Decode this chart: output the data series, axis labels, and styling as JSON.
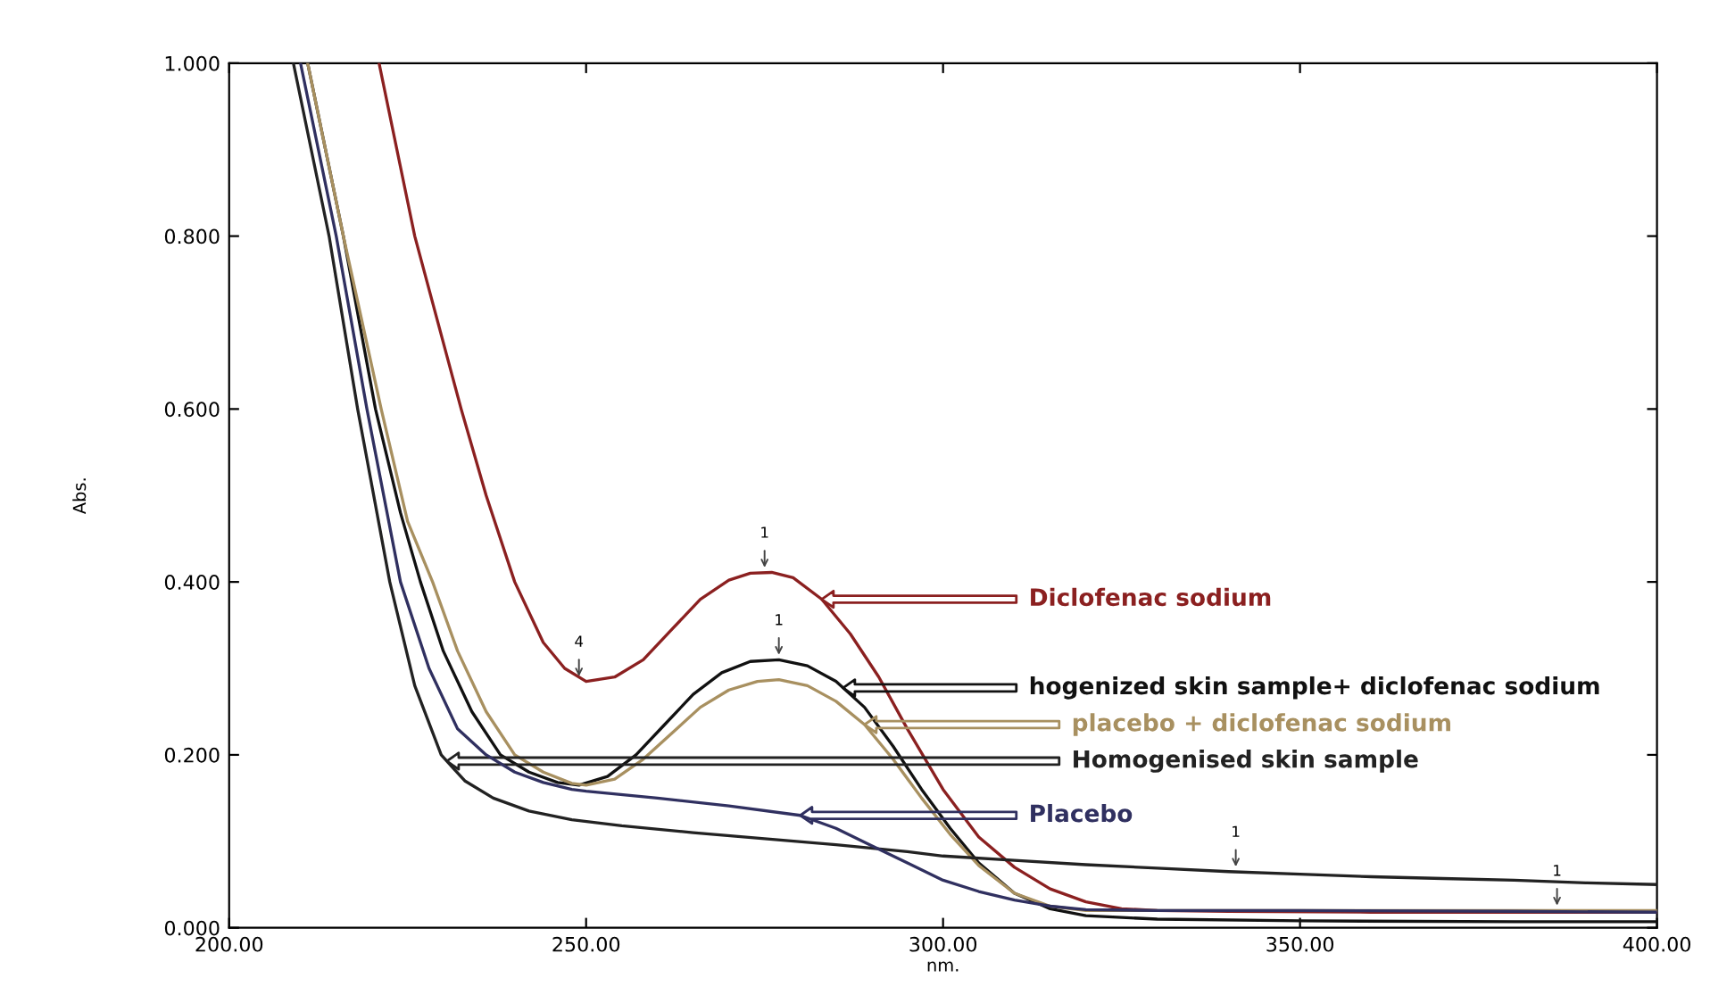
{
  "chart_data": {
    "type": "line",
    "xlabel": "nm.",
    "ylabel": "Abs.",
    "xlim": [
      200,
      400
    ],
    "xticks": [
      {
        "value": 200,
        "label": "200.00"
      },
      {
        "value": 250,
        "label": "250.00"
      },
      {
        "value": 300,
        "label": "300.00"
      },
      {
        "value": 350,
        "label": "350.00"
      },
      {
        "value": 400,
        "label": "400.00"
      }
    ],
    "ylim": [
      0,
      1
    ],
    "yticks": [
      {
        "value": 0,
        "label": "0.000"
      },
      {
        "value": 0.2,
        "label": "0.200"
      },
      {
        "value": 0.4,
        "label": "0.400"
      },
      {
        "value": 0.6,
        "label": "0.600"
      },
      {
        "value": 0.8,
        "label": "0.800"
      },
      {
        "value": 1.0,
        "label": "1.000"
      }
    ],
    "grid": false,
    "legend": false,
    "marker": "none",
    "line_style": "solid",
    "series": [
      {
        "name": "Diclofenac sodium",
        "color": "#8b2020",
        "x": [
          221,
          226,
          232.5,
          236,
          240,
          244,
          247,
          250,
          254,
          258,
          262,
          266,
          270,
          273,
          276,
          279,
          283,
          287,
          291,
          295,
          300,
          305,
          310,
          315,
          320,
          325,
          330,
          340,
          360,
          380,
          400
        ],
        "values": [
          1.0,
          0.8,
          0.6,
          0.5,
          0.4,
          0.33,
          0.3,
          0.285,
          0.29,
          0.31,
          0.345,
          0.38,
          0.402,
          0.41,
          0.411,
          0.405,
          0.38,
          0.34,
          0.29,
          0.23,
          0.16,
          0.105,
          0.07,
          0.045,
          0.03,
          0.022,
          0.02,
          0.019,
          0.018,
          0.018,
          0.018
        ]
      },
      {
        "name": "hogenized skin sample+ diclofenac sodium",
        "color": "#111111",
        "x": [
          211,
          216,
          220.5,
          224,
          226.8,
          230,
          234,
          238,
          242,
          246,
          249,
          253,
          257,
          261,
          265,
          269,
          273,
          277,
          281,
          285,
          289,
          293,
          297,
          301,
          305,
          310,
          315,
          320,
          330,
          350,
          380,
          400
        ],
        "values": [
          1.0,
          0.8,
          0.6,
          0.48,
          0.4,
          0.32,
          0.25,
          0.2,
          0.18,
          0.168,
          0.165,
          0.175,
          0.2,
          0.235,
          0.27,
          0.295,
          0.308,
          0.31,
          0.303,
          0.285,
          0.255,
          0.21,
          0.16,
          0.115,
          0.075,
          0.04,
          0.022,
          0.014,
          0.01,
          0.008,
          0.007,
          0.007
        ]
      },
      {
        "name": "placebo + diclofenac sodium",
        "color": "#a89060",
        "x": [
          211,
          216,
          221.3,
          225,
          228.5,
          232,
          236,
          240,
          244,
          248,
          250,
          254,
          258,
          262,
          266,
          270,
          274,
          277,
          281,
          285,
          289,
          293,
          297,
          301,
          305,
          310,
          315,
          320,
          330,
          350,
          385,
          400
        ],
        "values": [
          1.0,
          0.8,
          0.6,
          0.47,
          0.4,
          0.32,
          0.25,
          0.2,
          0.18,
          0.167,
          0.165,
          0.172,
          0.195,
          0.225,
          0.255,
          0.275,
          0.285,
          0.287,
          0.28,
          0.262,
          0.235,
          0.195,
          0.15,
          0.108,
          0.072,
          0.04,
          0.025,
          0.02,
          0.02,
          0.02,
          0.02,
          0.02
        ]
      },
      {
        "name": "Homogenised skin sample",
        "color": "#222222",
        "x": [
          209,
          214,
          218,
          222.5,
          226,
          229.7,
          233,
          237,
          242,
          248,
          255,
          265,
          275,
          285,
          295,
          300,
          310,
          320,
          330,
          340,
          350,
          360,
          370,
          380,
          390,
          400
        ],
        "values": [
          1.0,
          0.8,
          0.6,
          0.4,
          0.28,
          0.2,
          0.17,
          0.15,
          0.135,
          0.125,
          0.118,
          0.11,
          0.103,
          0.096,
          0.088,
          0.083,
          0.078,
          0.073,
          0.069,
          0.065,
          0.062,
          0.059,
          0.057,
          0.055,
          0.052,
          0.05
        ]
      },
      {
        "name": "Placebo",
        "color": "#303060",
        "x": [
          210,
          215,
          219.3,
          224,
          228,
          232,
          236,
          240,
          244,
          248,
          250,
          260,
          270,
          280,
          285,
          290,
          295,
          300,
          305,
          310,
          315,
          320,
          330,
          350,
          380,
          400
        ],
        "values": [
          1.0,
          0.8,
          0.6,
          0.4,
          0.3,
          0.23,
          0.2,
          0.18,
          0.168,
          0.16,
          0.158,
          0.15,
          0.141,
          0.13,
          0.115,
          0.095,
          0.075,
          0.055,
          0.042,
          0.032,
          0.025,
          0.021,
          0.02,
          0.02,
          0.019,
          0.018
        ]
      }
    ],
    "annotations": [
      {
        "text": "1",
        "x": 275,
        "y": 0.411
      },
      {
        "text": "4",
        "x": 249,
        "y": 0.285
      },
      {
        "text": "1",
        "x": 277,
        "y": 0.31
      },
      {
        "text": "1",
        "x": 341,
        "y": 0.065
      },
      {
        "text": "1",
        "x": 386,
        "y": 0.02
      }
    ]
  }
}
